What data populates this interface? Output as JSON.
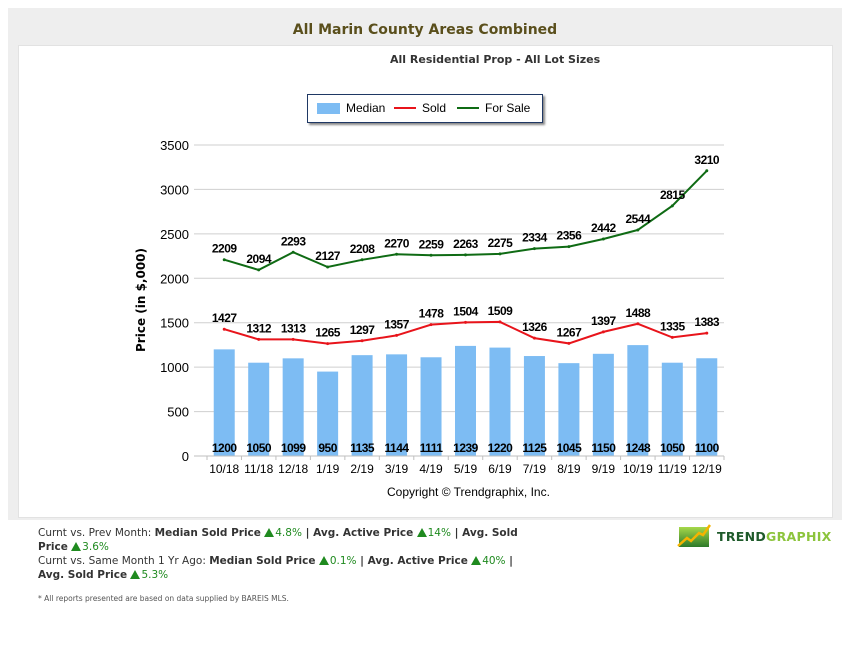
{
  "header": {
    "title": "All Marin County Areas Combined",
    "subtitle": "All Residential Prop - All Lot Sizes"
  },
  "legend": {
    "items": [
      {
        "label": "Median",
        "kind": "bar",
        "color": "#7dbcf3"
      },
      {
        "label": "Sold",
        "kind": "line",
        "color": "#e8141b"
      },
      {
        "label": "For Sale",
        "kind": "line",
        "color": "#0f6b14"
      }
    ]
  },
  "chart_data": {
    "type": "bar",
    "title": "All Marin County Areas Combined",
    "subtitle": "All Residential Prop - All Lot Sizes",
    "xlabel": "",
    "ylabel": "Price (in $,000)",
    "ylim": [
      0,
      3500
    ],
    "yticks": [
      0,
      500,
      1000,
      1500,
      2000,
      2500,
      3000,
      3500
    ],
    "grid": true,
    "legend_position": "top-center",
    "categories": [
      "10/18",
      "11/18",
      "12/18",
      "1/19",
      "2/19",
      "3/19",
      "4/19",
      "5/19",
      "6/19",
      "7/19",
      "8/19",
      "9/19",
      "10/19",
      "11/19",
      "12/19"
    ],
    "series": [
      {
        "name": "Median",
        "type": "bar",
        "color": "#7dbcf3",
        "values": [
          1200,
          1050,
          1099,
          950,
          1135,
          1144,
          1111,
          1239,
          1220,
          1125,
          1045,
          1150,
          1248,
          1050,
          1100
        ]
      },
      {
        "name": "Sold",
        "type": "line",
        "color": "#e8141b",
        "values": [
          1427,
          1312,
          1313,
          1265,
          1297,
          1357,
          1478,
          1504,
          1509,
          1326,
          1267,
          1397,
          1488,
          1335,
          1383
        ]
      },
      {
        "name": "For Sale",
        "type": "line",
        "color": "#0f6b14",
        "values": [
          2209,
          2094,
          2293,
          2127,
          2208,
          2270,
          2259,
          2263,
          2275,
          2334,
          2356,
          2442,
          2544,
          2815,
          3210
        ]
      }
    ],
    "annotation": "Copyright © Trendgraphix, Inc."
  },
  "stats": {
    "line1_prefix": "Curnt vs. Prev Month: ",
    "line1": [
      {
        "label": "Median Sold Price",
        "value": "4.8%"
      },
      {
        "label": "Avg. Active Price",
        "value": "14%"
      },
      {
        "label": "Avg. Sold Price",
        "value": "3.6%"
      }
    ],
    "line2_prefix": "Curnt vs. Same Month 1 Yr Ago: ",
    "line2": [
      {
        "label": "Median Sold Price",
        "value": "0.1%"
      },
      {
        "label": "Avg. Active Price",
        "value": "40%"
      },
      {
        "label": "Avg. Sold Price",
        "value": "5.3%"
      }
    ],
    "separator": " | "
  },
  "logo": {
    "part1": "TREND",
    "part2": "GRAPHIX"
  },
  "footnote": "* All reports presented are based on data supplied by BAREIS MLS."
}
